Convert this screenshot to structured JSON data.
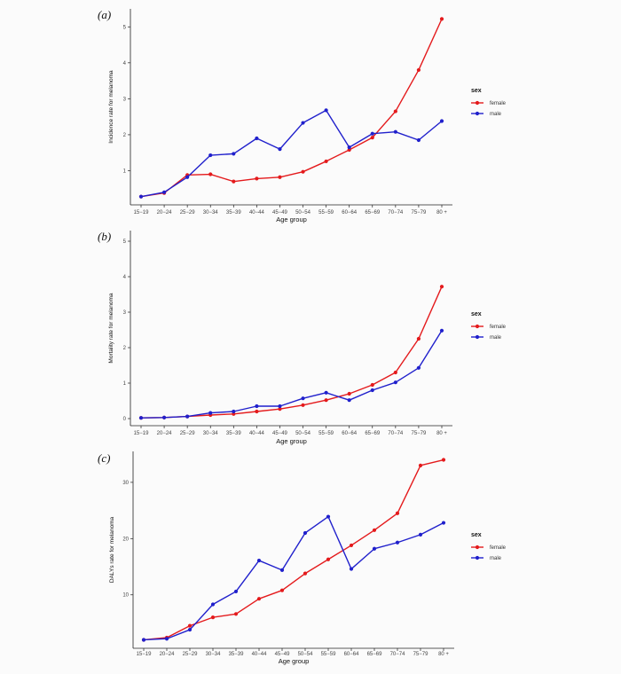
{
  "chart_data": [
    {
      "type": "line",
      "panel_label": "(a)",
      "title": "",
      "xlabel": "Age group",
      "ylabel": "Incidence rate for melanoma",
      "categories": [
        "15−19",
        "20−24",
        "25−29",
        "30−34",
        "35−39",
        "40−44",
        "45−49",
        "50−54",
        "55−59",
        "60−64",
        "65−69",
        "70−74",
        "75−79",
        "80 +"
      ],
      "ylim": [
        0.05,
        5.5
      ],
      "yticks": [
        1,
        2,
        3,
        4,
        5
      ],
      "grid": false,
      "legend_title": "sex",
      "legend_position": "right",
      "series": [
        {
          "name": "female",
          "color": "#e41a1c",
          "values": [
            0.28,
            0.38,
            0.88,
            0.9,
            0.7,
            0.78,
            0.82,
            0.97,
            1.26,
            1.58,
            1.92,
            2.65,
            3.8,
            5.22
          ]
        },
        {
          "name": "male",
          "color": "#2020cc",
          "values": [
            0.28,
            0.4,
            0.82,
            1.43,
            1.47,
            1.9,
            1.6,
            2.33,
            2.68,
            1.65,
            2.03,
            2.08,
            1.85,
            2.38
          ]
        }
      ]
    },
    {
      "type": "line",
      "panel_label": "(b)",
      "title": "",
      "xlabel": "Age group",
      "ylabel": "Mortality rate for melanoma",
      "categories": [
        "15−19",
        "20−24",
        "25−29",
        "30−34",
        "35−39",
        "40−44",
        "45−49",
        "50−54",
        "55−59",
        "60−64",
        "65−69",
        "70−74",
        "75−79",
        "80 +"
      ],
      "ylim": [
        -0.2,
        5.3
      ],
      "yticks": [
        0,
        1,
        2,
        3,
        4,
        5
      ],
      "grid": false,
      "legend_title": "sex",
      "legend_position": "right",
      "series": [
        {
          "name": "female",
          "color": "#e41a1c",
          "values": [
            0.02,
            0.03,
            0.06,
            0.1,
            0.13,
            0.2,
            0.27,
            0.38,
            0.52,
            0.7,
            0.95,
            1.3,
            2.25,
            3.72
          ]
        },
        {
          "name": "male",
          "color": "#2020cc",
          "values": [
            0.02,
            0.03,
            0.06,
            0.16,
            0.2,
            0.35,
            0.35,
            0.57,
            0.73,
            0.52,
            0.8,
            1.02,
            1.43,
            2.48
          ]
        }
      ]
    },
    {
      "type": "line",
      "panel_label": "(c)",
      "title": "",
      "xlabel": "Age group",
      "ylabel": "DALYs rate for melanoma",
      "categories": [
        "15−19",
        "20−24",
        "25−29",
        "30−34",
        "35−39",
        "40−44",
        "45−49",
        "50−54",
        "55−59",
        "60−64",
        "65−69",
        "70−74",
        "75−79",
        "80 +"
      ],
      "ylim": [
        0.5,
        35.5
      ],
      "yticks": [
        10,
        20,
        30
      ],
      "grid": false,
      "legend_title": "sex",
      "legend_position": "right",
      "series": [
        {
          "name": "female",
          "color": "#e41a1c",
          "values": [
            2.0,
            2.4,
            4.5,
            6.0,
            6.6,
            9.3,
            10.8,
            13.8,
            16.3,
            18.8,
            21.5,
            24.5,
            33.0,
            34.0
          ]
        },
        {
          "name": "male",
          "color": "#2020cc",
          "values": [
            2.0,
            2.2,
            3.8,
            8.3,
            10.6,
            16.1,
            14.4,
            21.0,
            23.9,
            14.6,
            18.2,
            19.3,
            20.7,
            22.8
          ]
        }
      ]
    }
  ]
}
